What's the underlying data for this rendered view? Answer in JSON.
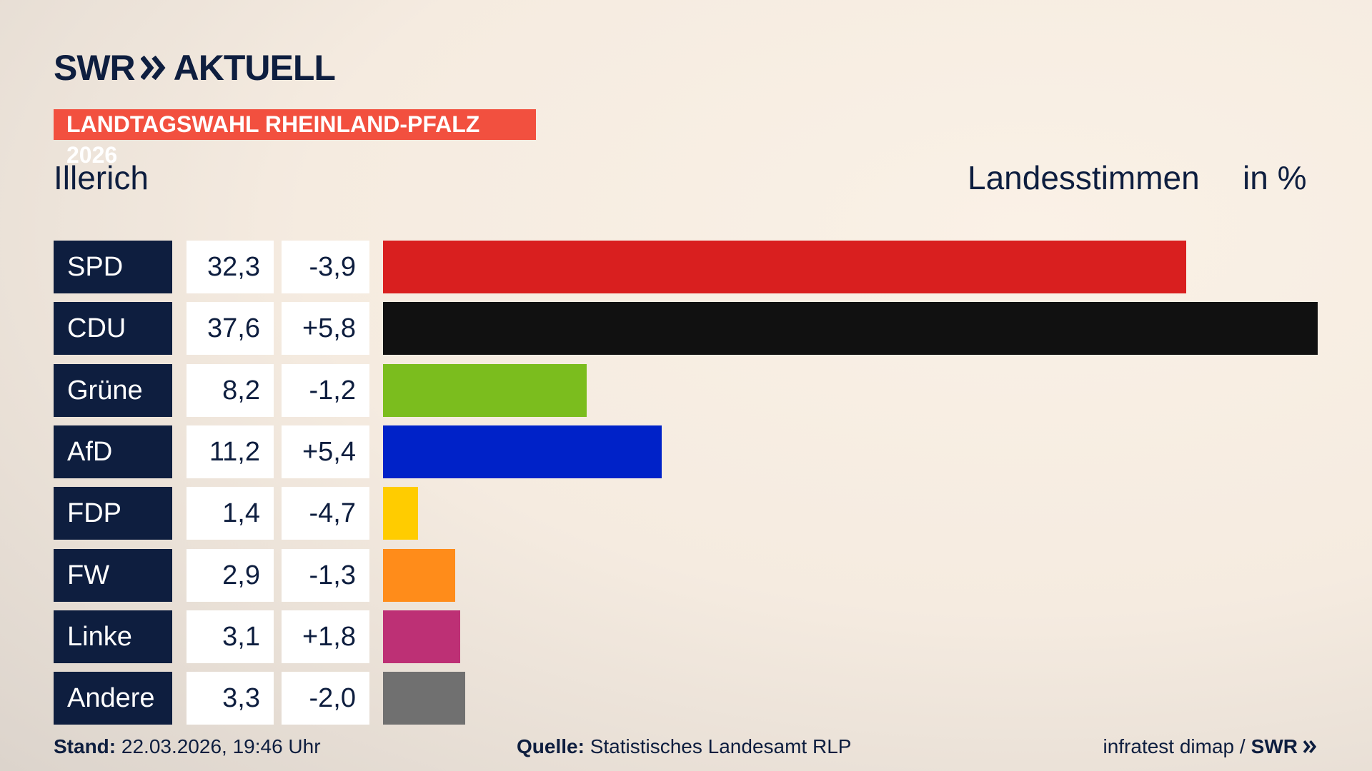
{
  "header": {
    "brand": "SWR",
    "brand_section": "AKTUELL",
    "badge": "LANDTAGSWAHL RHEINLAND-PFALZ 2026"
  },
  "chart_data": {
    "type": "bar",
    "title": "Illerich",
    "value_heading": "Landesstimmen",
    "unit_heading": "in %",
    "categories": [
      "SPD",
      "CDU",
      "Grüne",
      "AfD",
      "FDP",
      "FW",
      "Linke",
      "Andere"
    ],
    "values": [
      32.3,
      37.6,
      8.2,
      11.2,
      1.4,
      2.9,
      3.1,
      3.3
    ],
    "value_labels": [
      "32,3",
      "37,6",
      "8,2",
      "11,2",
      "1,4",
      "2,9",
      "3,1",
      "3,3"
    ],
    "changes": [
      -3.9,
      5.8,
      -1.2,
      5.4,
      -4.7,
      -1.3,
      1.8,
      -2.0
    ],
    "change_labels": [
      "-3,9",
      "+5,8",
      "-1,2",
      "+5,4",
      "-4,7",
      "-1,3",
      "+1,8",
      "-2,0"
    ],
    "colors": [
      "#d91f1f",
      "#111111",
      "#7bbd1e",
      "#0022c8",
      "#ffcc00",
      "#ff8c1a",
      "#bd3075",
      "#707070"
    ]
  },
  "footer": {
    "stand_label": "Stand:",
    "stand": "22.03.2026, 19:46 Uhr",
    "source_label": "Quelle:",
    "source": "Statistisches Landesamt RLP",
    "credit": "infratest dimap /",
    "credit_brand": "SWR"
  }
}
